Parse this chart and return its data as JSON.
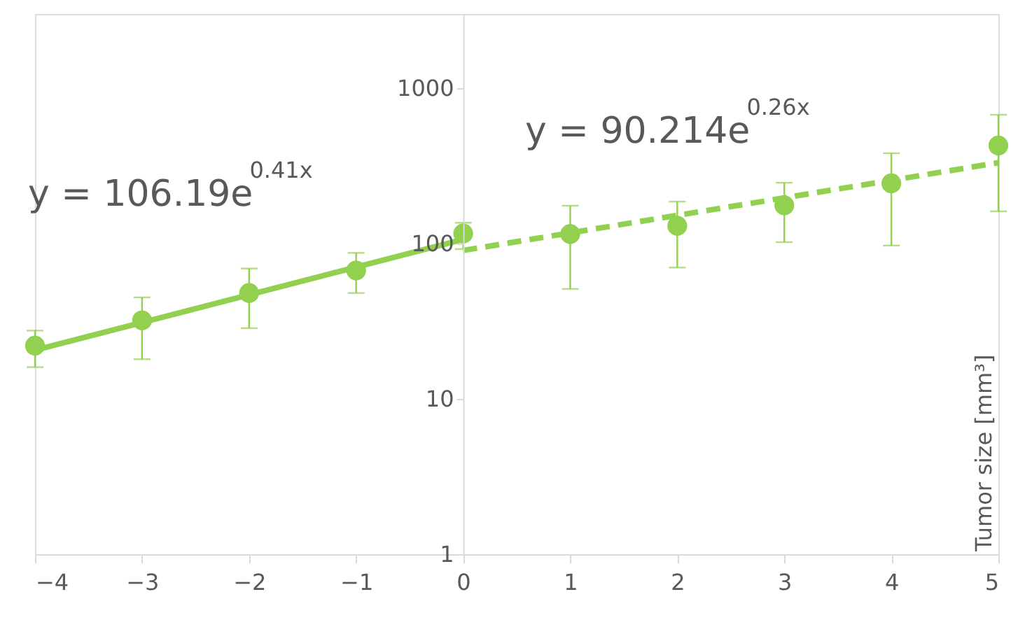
{
  "chart_data": {
    "type": "scatter",
    "ylabel": "Tumor size [mm³]",
    "log": "y",
    "xlim": [
      -4,
      5
    ],
    "xticks": [
      -4,
      -3,
      -2,
      -1,
      0,
      1,
      2,
      3,
      4,
      5
    ],
    "ylim": [
      1,
      3000
    ],
    "yticks": [
      1,
      10,
      100,
      1000
    ],
    "grid": false,
    "marker": "circle",
    "annotations": [
      "y = 106.19e$^{0.41x}$",
      "y = 90.214e$^{0.26x}$"
    ],
    "series": [
      {
        "color": "#92d050",
        "x": [
          -4,
          -3,
          -2,
          -1,
          0,
          1,
          2,
          3,
          4,
          5
        ],
        "values": [
          22,
          32,
          48,
          67,
          116,
          115,
          130,
          176,
          244,
          427
        ],
        "errors": [
          [
            16,
            27.5
          ],
          [
            18,
            45
          ],
          [
            28.5,
            69
          ],
          [
            48,
            87
          ],
          [
            92,
            136
          ],
          [
            51,
            175
          ],
          [
            70,
            186
          ],
          [
            102,
            246
          ],
          [
            97,
            381
          ],
          [
            161,
            674
          ]
        ]
      },
      {
        "type": "line",
        "color": "#92d050",
        "line_style": "solid",
        "marker": "none",
        "x": [
          -4,
          0
        ],
        "values": [
          20.6,
          106.19
        ]
      },
      {
        "type": "line",
        "color": "#92d050",
        "line_style": "dashed",
        "marker": "none",
        "x": [
          0,
          5
        ],
        "values": [
          90.214,
          331
        ]
      }
    ]
  }
}
